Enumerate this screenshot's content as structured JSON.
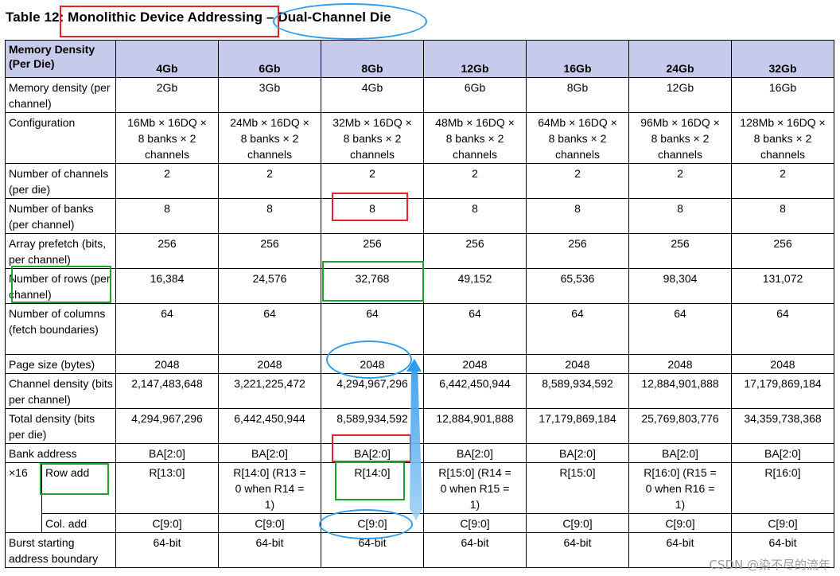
{
  "title": {
    "prefix": "Table 12",
    "main": ": Monolithic Device Addressing",
    "sep": " – ",
    "suffix": "Dual-Channel Die"
  },
  "header": {
    "first": "Memory Density (Per Die)",
    "cols": [
      "4Gb",
      "6Gb",
      "8Gb",
      "12Gb",
      "16Gb",
      "24Gb",
      "32Gb"
    ]
  },
  "rows": [
    {
      "label": "Memory density (per channel)",
      "values": [
        "2Gb",
        "3Gb",
        "4Gb",
        "6Gb",
        "8Gb",
        "12Gb",
        "16Gb"
      ]
    },
    {
      "label": "Configuration",
      "values": [
        "16Mb × 16DQ × 8 banks × 2 channels",
        "24Mb × 16DQ × 8 banks × 2 channels",
        "32Mb × 16DQ × 8 banks × 2 channels",
        "48Mb × 16DQ × 8 banks × 2 channels",
        "64Mb × 16DQ × 8 banks × 2 channels",
        "96Mb × 16DQ × 8 banks × 2 channels",
        "128Mb × 16DQ × 8 banks × 2 channels"
      ]
    },
    {
      "label": "Number of channels (per die)",
      "values": [
        "2",
        "2",
        "2",
        "2",
        "2",
        "2",
        "2"
      ]
    },
    {
      "label": "Number of banks (per channel)",
      "values": [
        "8",
        "8",
        "8",
        "8",
        "8",
        "8",
        "8"
      ]
    },
    {
      "label": "Array prefetch (bits, per channel)",
      "values": [
        "256",
        "256",
        "256",
        "256",
        "256",
        "256",
        "256"
      ]
    },
    {
      "label": "Number of rows (per channel)",
      "values": [
        "16,384",
        "24,576",
        "32,768",
        "49,152",
        "65,536",
        "98,304",
        "131,072"
      ]
    },
    {
      "label": "Number of columns (fetch boundaries)",
      "values": [
        "64",
        "64",
        "64",
        "64",
        "64",
        "64",
        "64"
      ]
    },
    {
      "label": "Page size (bytes)",
      "values": [
        "2048",
        "2048",
        "2048",
        "2048",
        "2048",
        "2048",
        "2048"
      ]
    },
    {
      "label": "Channel density (bits per channel)",
      "values": [
        "2,147,483,648",
        "3,221,225,472",
        "4,294,967,296",
        "6,442,450,944",
        "8,589,934,592",
        "12,884,901,888",
        "17,179,869,184"
      ]
    },
    {
      "label": "Total density (bits per die)",
      "values": [
        "4,294,967,296",
        "6,442,450,944",
        "8,589,934,592",
        "12,884,901,888",
        "17,179,869,184",
        "25,769,803,776",
        "34,359,738,368"
      ]
    },
    {
      "label": "Bank address",
      "values": [
        "BA[2:0]",
        "BA[2:0]",
        "BA[2:0]",
        "BA[2:0]",
        "BA[2:0]",
        "BA[2:0]",
        "BA[2:0]"
      ]
    }
  ],
  "x16": {
    "label": "×16",
    "row_add": {
      "label": "Row add",
      "values": [
        "R[13:0]",
        "R[14:0] (R13 = 0 when R14 = 1)",
        "R[14:0]",
        "R[15:0] (R14 = 0 when R15 = 1)",
        "R[15:0]",
        "R[16:0] (R15 = 0 when R16 = 1)",
        "R[16:0]"
      ]
    },
    "col_add": {
      "label": "Col. add",
      "values": [
        "C[9:0]",
        "C[9:0]",
        "C[9:0]",
        "C[9:0]",
        "C[9:0]",
        "C[9:0]",
        "C[9:0]"
      ]
    }
  },
  "burst": {
    "label": "Burst starting address boundary",
    "values": [
      "64-bit",
      "64-bit",
      "64-bit",
      "64-bit",
      "64-bit",
      "64-bit",
      "64-bit"
    ]
  },
  "watermark": "CSDN @染不尽的流年",
  "annotation_colors": {
    "red": "#e8202a",
    "green": "#1fa12f",
    "blue": "#2f9bea"
  }
}
